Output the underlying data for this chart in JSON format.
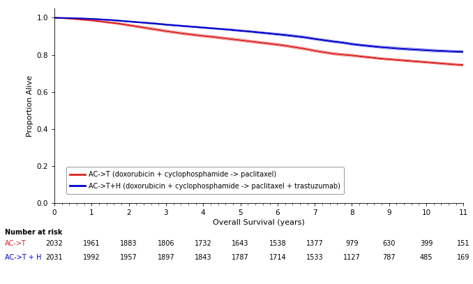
{
  "xlabel": "Overall Survival (years)",
  "ylabel": "Proportion Alive",
  "xlim": [
    0,
    11
  ],
  "ylim": [
    0.0,
    1.05
  ],
  "yticks": [
    0.0,
    0.2,
    0.4,
    0.6,
    0.8,
    1.0
  ],
  "xticks": [
    0,
    1,
    2,
    3,
    4,
    5,
    6,
    7,
    8,
    9,
    10,
    11
  ],
  "line_act": {
    "color": "#dd2222",
    "label": "AC->T (doxorubicin + cyclophosphamide -> paclitaxel)",
    "x": [
      0,
      0.25,
      0.5,
      0.75,
      1.0,
      1.25,
      1.5,
      1.75,
      2.0,
      2.25,
      2.5,
      2.75,
      3.0,
      3.25,
      3.5,
      3.75,
      4.0,
      4.25,
      4.5,
      4.75,
      5.0,
      5.25,
      5.5,
      5.75,
      6.0,
      6.25,
      6.5,
      6.75,
      7.0,
      7.25,
      7.5,
      7.75,
      8.0,
      8.25,
      8.5,
      8.75,
      9.0,
      9.25,
      9.5,
      9.75,
      10.0,
      10.25,
      10.5,
      10.75,
      11.0
    ],
    "y": [
      1.0,
      0.998,
      0.994,
      0.99,
      0.986,
      0.98,
      0.974,
      0.968,
      0.96,
      0.952,
      0.944,
      0.936,
      0.928,
      0.921,
      0.914,
      0.908,
      0.902,
      0.897,
      0.891,
      0.885,
      0.879,
      0.873,
      0.867,
      0.861,
      0.855,
      0.848,
      0.84,
      0.832,
      0.822,
      0.814,
      0.806,
      0.801,
      0.797,
      0.791,
      0.786,
      0.78,
      0.776,
      0.772,
      0.768,
      0.764,
      0.76,
      0.756,
      0.752,
      0.748,
      0.745
    ],
    "y_upper": [
      1.0,
      0.999,
      0.996,
      0.993,
      0.99,
      0.984,
      0.979,
      0.973,
      0.966,
      0.958,
      0.951,
      0.943,
      0.935,
      0.928,
      0.921,
      0.915,
      0.909,
      0.904,
      0.898,
      0.892,
      0.886,
      0.88,
      0.874,
      0.868,
      0.862,
      0.855,
      0.847,
      0.839,
      0.829,
      0.821,
      0.813,
      0.808,
      0.804,
      0.797,
      0.792,
      0.786,
      0.782,
      0.778,
      0.774,
      0.77,
      0.766,
      0.762,
      0.758,
      0.754,
      0.751
    ],
    "y_lower": [
      1.0,
      0.997,
      0.992,
      0.987,
      0.982,
      0.976,
      0.969,
      0.963,
      0.954,
      0.946,
      0.937,
      0.929,
      0.921,
      0.914,
      0.907,
      0.901,
      0.895,
      0.89,
      0.884,
      0.878,
      0.872,
      0.866,
      0.86,
      0.854,
      0.848,
      0.841,
      0.833,
      0.825,
      0.815,
      0.807,
      0.799,
      0.794,
      0.79,
      0.785,
      0.78,
      0.774,
      0.77,
      0.766,
      0.762,
      0.758,
      0.754,
      0.75,
      0.746,
      0.742,
      0.739
    ]
  },
  "line_acth": {
    "color": "#0000cc",
    "label": "AC->T+H (doxorubicin + cyclophosphamide -> paclitaxel + trastuzumab)",
    "x": [
      0,
      0.25,
      0.5,
      0.75,
      1.0,
      1.25,
      1.5,
      1.75,
      2.0,
      2.25,
      2.5,
      2.75,
      3.0,
      3.25,
      3.5,
      3.75,
      4.0,
      4.25,
      4.5,
      4.75,
      5.0,
      5.25,
      5.5,
      5.75,
      6.0,
      6.25,
      6.5,
      6.75,
      7.0,
      7.25,
      7.5,
      7.75,
      8.0,
      8.25,
      8.5,
      8.75,
      9.0,
      9.25,
      9.5,
      9.75,
      10.0,
      10.25,
      10.5,
      10.75,
      11.0
    ],
    "y": [
      1.0,
      0.999,
      0.998,
      0.996,
      0.994,
      0.991,
      0.988,
      0.984,
      0.98,
      0.976,
      0.972,
      0.968,
      0.963,
      0.959,
      0.955,
      0.951,
      0.947,
      0.943,
      0.939,
      0.935,
      0.93,
      0.926,
      0.921,
      0.916,
      0.911,
      0.906,
      0.9,
      0.894,
      0.886,
      0.879,
      0.872,
      0.866,
      0.858,
      0.852,
      0.847,
      0.842,
      0.838,
      0.834,
      0.831,
      0.828,
      0.825,
      0.822,
      0.82,
      0.818,
      0.816
    ],
    "y_upper": [
      1.0,
      1.0,
      0.999,
      0.998,
      0.996,
      0.994,
      0.991,
      0.987,
      0.983,
      0.979,
      0.976,
      0.972,
      0.967,
      0.963,
      0.959,
      0.955,
      0.951,
      0.947,
      0.943,
      0.94,
      0.935,
      0.931,
      0.926,
      0.921,
      0.917,
      0.912,
      0.906,
      0.9,
      0.892,
      0.885,
      0.878,
      0.872,
      0.864,
      0.858,
      0.853,
      0.848,
      0.845,
      0.841,
      0.838,
      0.835,
      0.832,
      0.829,
      0.826,
      0.824,
      0.822
    ],
    "y_lower": [
      1.0,
      0.998,
      0.997,
      0.994,
      0.992,
      0.988,
      0.985,
      0.981,
      0.977,
      0.973,
      0.968,
      0.964,
      0.959,
      0.955,
      0.951,
      0.947,
      0.943,
      0.939,
      0.935,
      0.93,
      0.925,
      0.921,
      0.916,
      0.911,
      0.905,
      0.9,
      0.894,
      0.888,
      0.88,
      0.873,
      0.866,
      0.86,
      0.852,
      0.846,
      0.841,
      0.836,
      0.831,
      0.827,
      0.824,
      0.821,
      0.818,
      0.815,
      0.814,
      0.812,
      0.81
    ]
  },
  "number_at_risk": {
    "label": "Number at risk",
    "act_label": "AC->T",
    "acth_label": "AC->T + H",
    "act_values": [
      2032,
      1961,
      1883,
      1806,
      1732,
      1643,
      1538,
      1377,
      979,
      630,
      399,
      151
    ],
    "acth_values": [
      2031,
      1992,
      1957,
      1897,
      1843,
      1787,
      1714,
      1533,
      1127,
      787,
      485,
      169
    ],
    "x_positions": [
      0,
      1,
      2,
      3,
      4,
      5,
      6,
      7,
      8,
      9,
      10,
      11
    ]
  },
  "bg_color": "#ffffff",
  "plot_bg_color": "#ffffff",
  "linewidth": 1.5,
  "band_linewidth": 0.5
}
